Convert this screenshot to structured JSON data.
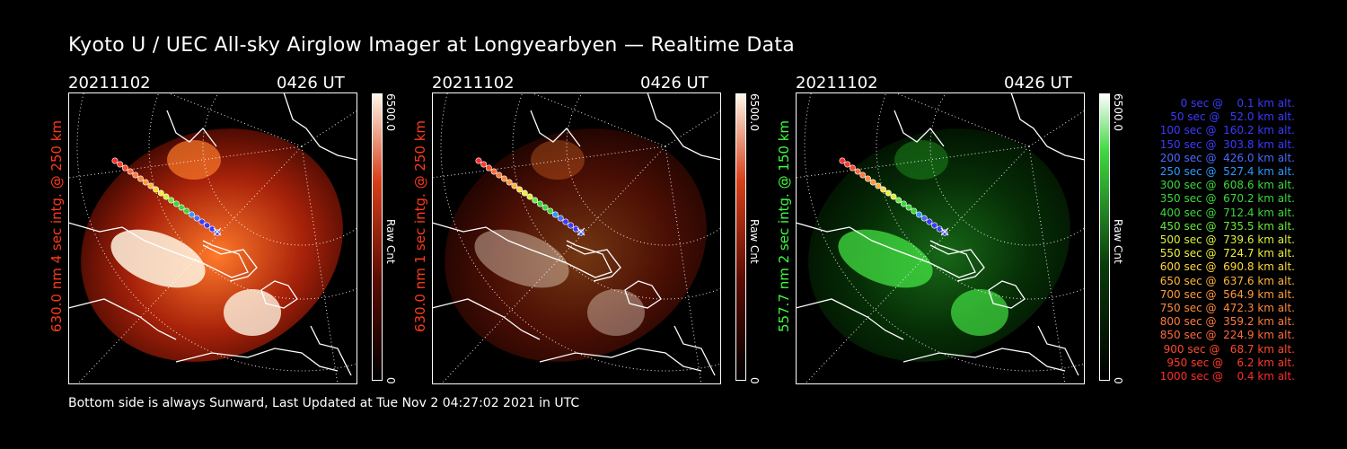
{
  "title": "Kyoto U / UEC All-sky Airglow Imager at Longyearbyen — Realtime Data",
  "footer": "Bottom side is always Sunward, Last Updated at Tue Nov  2 04:27:02 2021 in UTC",
  "panels": [
    {
      "date": "20211102",
      "time": "0426 UT",
      "ylabel": "630.0 nm 4 sec intg. @ 250 km",
      "ylabel_color": "#ff3a1a",
      "cbar_max": "6500.0",
      "cbar_min": "0",
      "cbar_unit": "Raw Cnt",
      "glow": "red",
      "intensity": "bright"
    },
    {
      "date": "20211102",
      "time": "0426 UT",
      "ylabel": "630.0 nm 1 sec intg. @ 250 km",
      "ylabel_color": "#ff3a1a",
      "cbar_max": "6500.0",
      "cbar_min": "0",
      "cbar_unit": "Raw Cnt",
      "glow": "red",
      "intensity": "dim"
    },
    {
      "date": "20211102",
      "time": "0426 UT",
      "ylabel": "557.7 nm 2 sec intg. @ 150 km",
      "ylabel_color": "#3cff3c",
      "cbar_max": "6500.0",
      "cbar_min": "0",
      "cbar_unit": "Raw Cnt",
      "glow": "green",
      "intensity": "medium"
    }
  ],
  "legend": [
    {
      "text": "   0 sec @    0.1 km alt.",
      "color": "#3a3aff"
    },
    {
      "text": "  50 sec @   52.0 km alt.",
      "color": "#3a3aff"
    },
    {
      "text": " 100 sec @  160.2 km alt.",
      "color": "#3a3aff"
    },
    {
      "text": " 150 sec @  303.8 km alt.",
      "color": "#3a3aff"
    },
    {
      "text": " 200 sec @  426.0 km alt.",
      "color": "#4a6aff"
    },
    {
      "text": " 250 sec @  527.4 km alt.",
      "color": "#2a9aff"
    },
    {
      "text": " 300 sec @  608.6 km alt.",
      "color": "#3ad83a"
    },
    {
      "text": " 350 sec @  670.2 km alt.",
      "color": "#3ad83a"
    },
    {
      "text": " 400 sec @  712.4 km alt.",
      "color": "#3ad83a"
    },
    {
      "text": " 450 sec @  735.5 km alt.",
      "color": "#6ae83a"
    },
    {
      "text": " 500 sec @  739.6 km alt.",
      "color": "#d8f03a"
    },
    {
      "text": " 550 sec @  724.7 km alt.",
      "color": "#f0f03a"
    },
    {
      "text": " 600 sec @  690.8 km alt.",
      "color": "#ffd83a"
    },
    {
      "text": " 650 sec @  637.6 km alt.",
      "color": "#ffb43a"
    },
    {
      "text": " 700 sec @  564.9 km alt.",
      "color": "#ff9a3a"
    },
    {
      "text": " 750 sec @  472.3 km alt.",
      "color": "#ff8a3a"
    },
    {
      "text": " 800 sec @  359.2 km alt.",
      "color": "#ff7a3a"
    },
    {
      "text": " 850 sec @  224.9 km alt.",
      "color": "#ff6a3a"
    },
    {
      "text": " 900 sec @   68.7 km alt.",
      "color": "#ff4a2a"
    },
    {
      "text": " 950 sec @    6.2 km alt.",
      "color": "#ff3a2a"
    },
    {
      "text": "1000 sec @    0.4 km alt.",
      "color": "#ff2a2a"
    }
  ]
}
